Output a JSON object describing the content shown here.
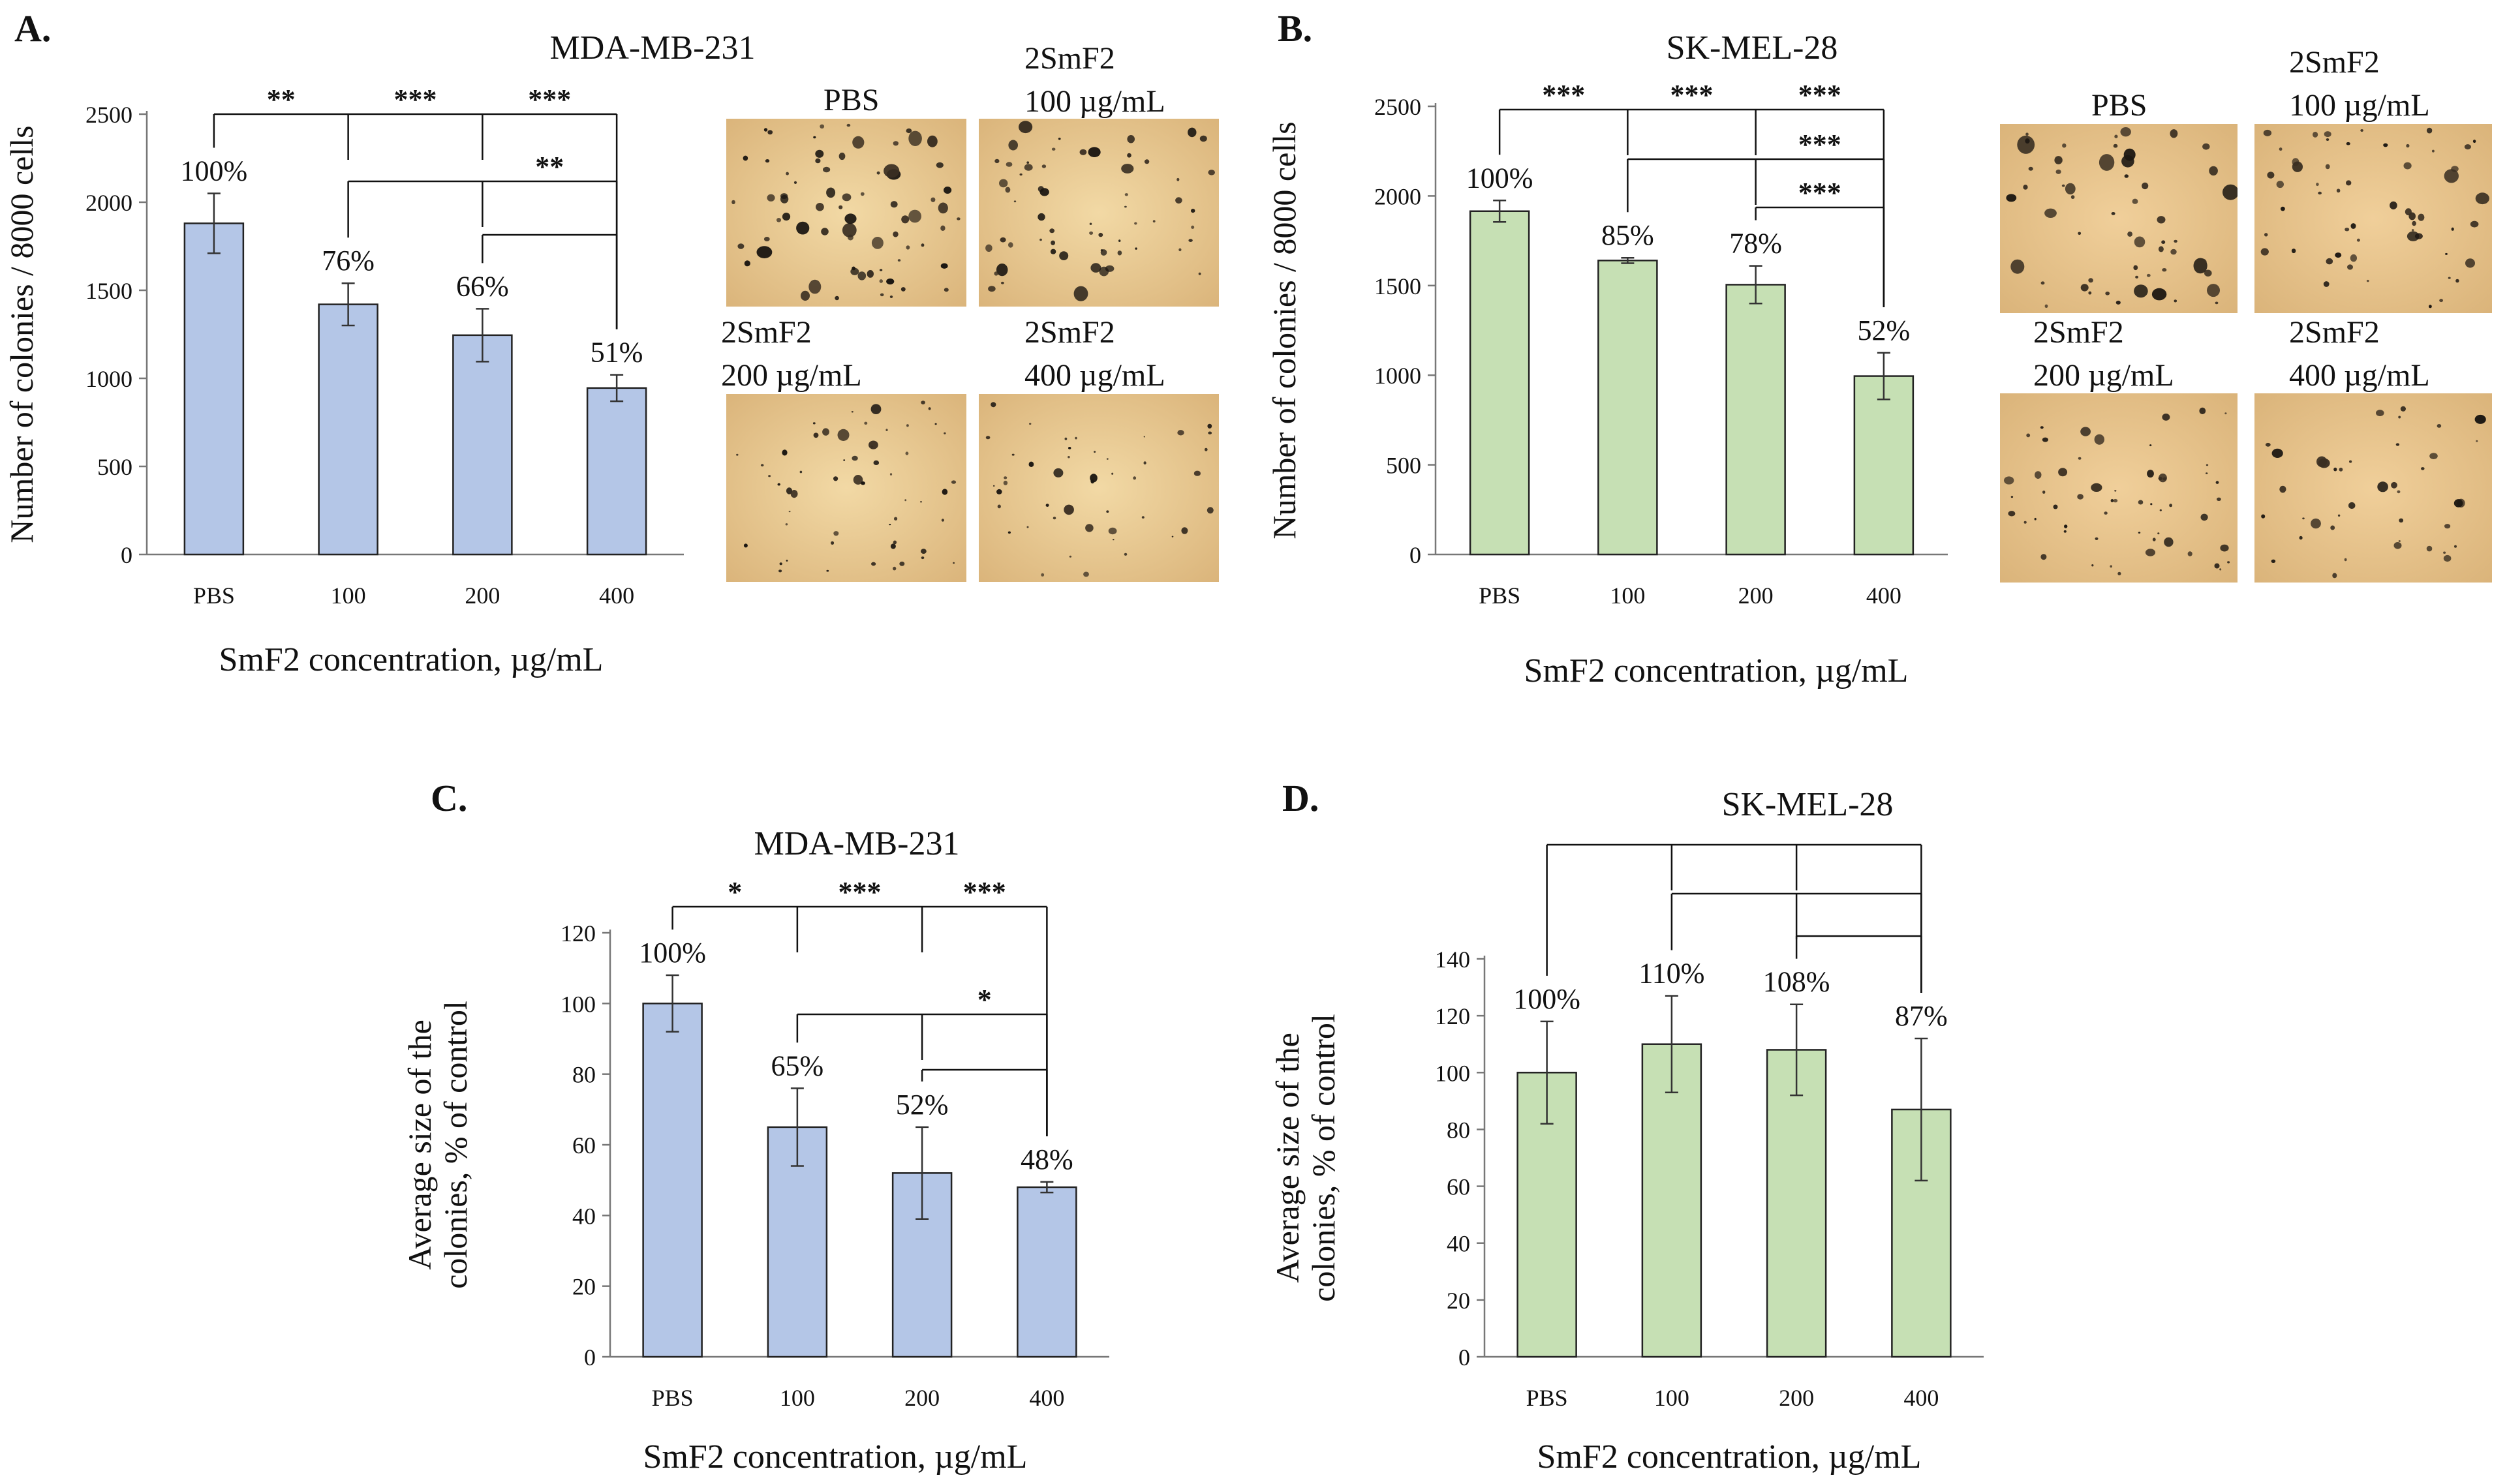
{
  "panels": {
    "A": {
      "letter": "A."
    },
    "B": {
      "letter": "B."
    },
    "C": {
      "letter": "C."
    },
    "D": {
      "letter": "D."
    }
  },
  "images": {
    "A": [
      {
        "label1": "PBS",
        "label2": ""
      },
      {
        "label1": "2SmF2",
        "label2": "100 µg/mL"
      },
      {
        "label1": "2SmF2",
        "label2": "200 µg/mL"
      },
      {
        "label1": "2SmF2",
        "label2": "400 µg/mL"
      }
    ],
    "B": [
      {
        "label1": "PBS",
        "label2": ""
      },
      {
        "label1": "2SmF2",
        "label2": "100 µg/mL"
      },
      {
        "label1": "2SmF2",
        "label2": "200 µg/mL"
      },
      {
        "label1": "2SmF2",
        "label2": "400 µg/mL"
      }
    ]
  },
  "colors": {
    "blue_bar": "#b4c6e7",
    "green_bar": "#c6e0b4",
    "micro_blue_bg": "#f2d9a5",
    "micro_green_bg": "#f0cf9a",
    "ink": "#000000"
  },
  "chart_data": [
    {
      "panel": "A",
      "type": "bar",
      "title": "MDA-MB-231",
      "categories": [
        "PBS",
        "100",
        "200",
        "400"
      ],
      "values": [
        1880,
        1420,
        1245,
        945
      ],
      "errors": [
        170,
        120,
        150,
        75
      ],
      "labels": [
        "100%",
        "76%",
        "66%",
        "51%"
      ],
      "xlabel": "SmF2 concentration, µg/mL",
      "ylabel": "Number of colonies / 8000 cells",
      "ylim": [
        0,
        2500
      ],
      "yticks": [
        0,
        500,
        1000,
        1500,
        2000,
        2500
      ],
      "color": "#b4c6e7",
      "significance": [
        {
          "from": 0,
          "to": 3,
          "stars": [
            "**",
            "***",
            "***"
          ],
          "level": 0
        },
        {
          "from": 1,
          "to": 3,
          "stars": [
            "",
            "**"
          ],
          "level": 1
        },
        {
          "from": 2,
          "to": 3,
          "stars": [
            ""
          ],
          "level": 2
        }
      ]
    },
    {
      "panel": "B",
      "type": "bar",
      "title": "SK-MEL-28",
      "categories": [
        "PBS",
        "100",
        "200",
        "400"
      ],
      "values": [
        1915,
        1640,
        1505,
        995
      ],
      "errors": [
        60,
        15,
        105,
        130
      ],
      "labels": [
        "100%",
        "85%",
        "78%",
        "52%"
      ],
      "xlabel": "SmF2 concentration, µg/mL",
      "ylabel": "Number of colonies / 8000 cells",
      "ylim": [
        0,
        2500
      ],
      "yticks": [
        0,
        500,
        1000,
        1500,
        2000,
        2500
      ],
      "color": "#c6e0b4",
      "significance": [
        {
          "from": 0,
          "to": 3,
          "stars": [
            "***",
            "***",
            "***"
          ],
          "level": 0
        },
        {
          "from": 1,
          "to": 3,
          "stars": [
            "",
            "***"
          ],
          "level": 1
        },
        {
          "from": 2,
          "to": 3,
          "stars": [
            "***"
          ],
          "level": 2
        }
      ]
    },
    {
      "panel": "C",
      "type": "bar",
      "title": "MDA-MB-231",
      "categories": [
        "PBS",
        "100",
        "200",
        "400"
      ],
      "values": [
        100,
        65,
        52,
        48
      ],
      "errors": [
        8,
        11,
        13,
        1.5
      ],
      "labels": [
        "100%",
        "65%",
        "52%",
        "48%"
      ],
      "xlabel": "SmF2 concentration, µg/mL",
      "ylabel": "Average size of the colonies, % of control",
      "ylim": [
        0,
        120
      ],
      "yticks": [
        0,
        20,
        40,
        60,
        80,
        100,
        120
      ],
      "color": "#b4c6e7",
      "significance": [
        {
          "from": 0,
          "to": 3,
          "stars": [
            "*",
            "***",
            "***"
          ],
          "level": 0
        },
        {
          "from": 1,
          "to": 3,
          "stars": [
            "",
            "*"
          ],
          "level": 1
        },
        {
          "from": 2,
          "to": 3,
          "stars": [
            ""
          ],
          "level": 2
        }
      ]
    },
    {
      "panel": "D",
      "type": "bar",
      "title": "SK-MEL-28",
      "categories": [
        "PBS",
        "100",
        "200",
        "400"
      ],
      "values": [
        100,
        110,
        108,
        87
      ],
      "errors": [
        18,
        17,
        16,
        25
      ],
      "labels": [
        "100%",
        "110%",
        "108%",
        "87%"
      ],
      "xlabel": "SmF2 concentration, µg/mL",
      "ylabel": "Average size of the colonies, % of control",
      "ylim": [
        0,
        140
      ],
      "yticks": [
        0,
        20,
        40,
        60,
        80,
        100,
        120,
        140
      ],
      "color": "#c6e0b4",
      "significance": [
        {
          "from": 0,
          "to": 3,
          "stars": [
            "",
            "",
            ""
          ],
          "level": 0
        },
        {
          "from": 1,
          "to": 3,
          "stars": [
            "",
            ""
          ],
          "level": 1
        },
        {
          "from": 2,
          "to": 3,
          "stars": [
            ""
          ],
          "level": 2
        }
      ]
    }
  ]
}
